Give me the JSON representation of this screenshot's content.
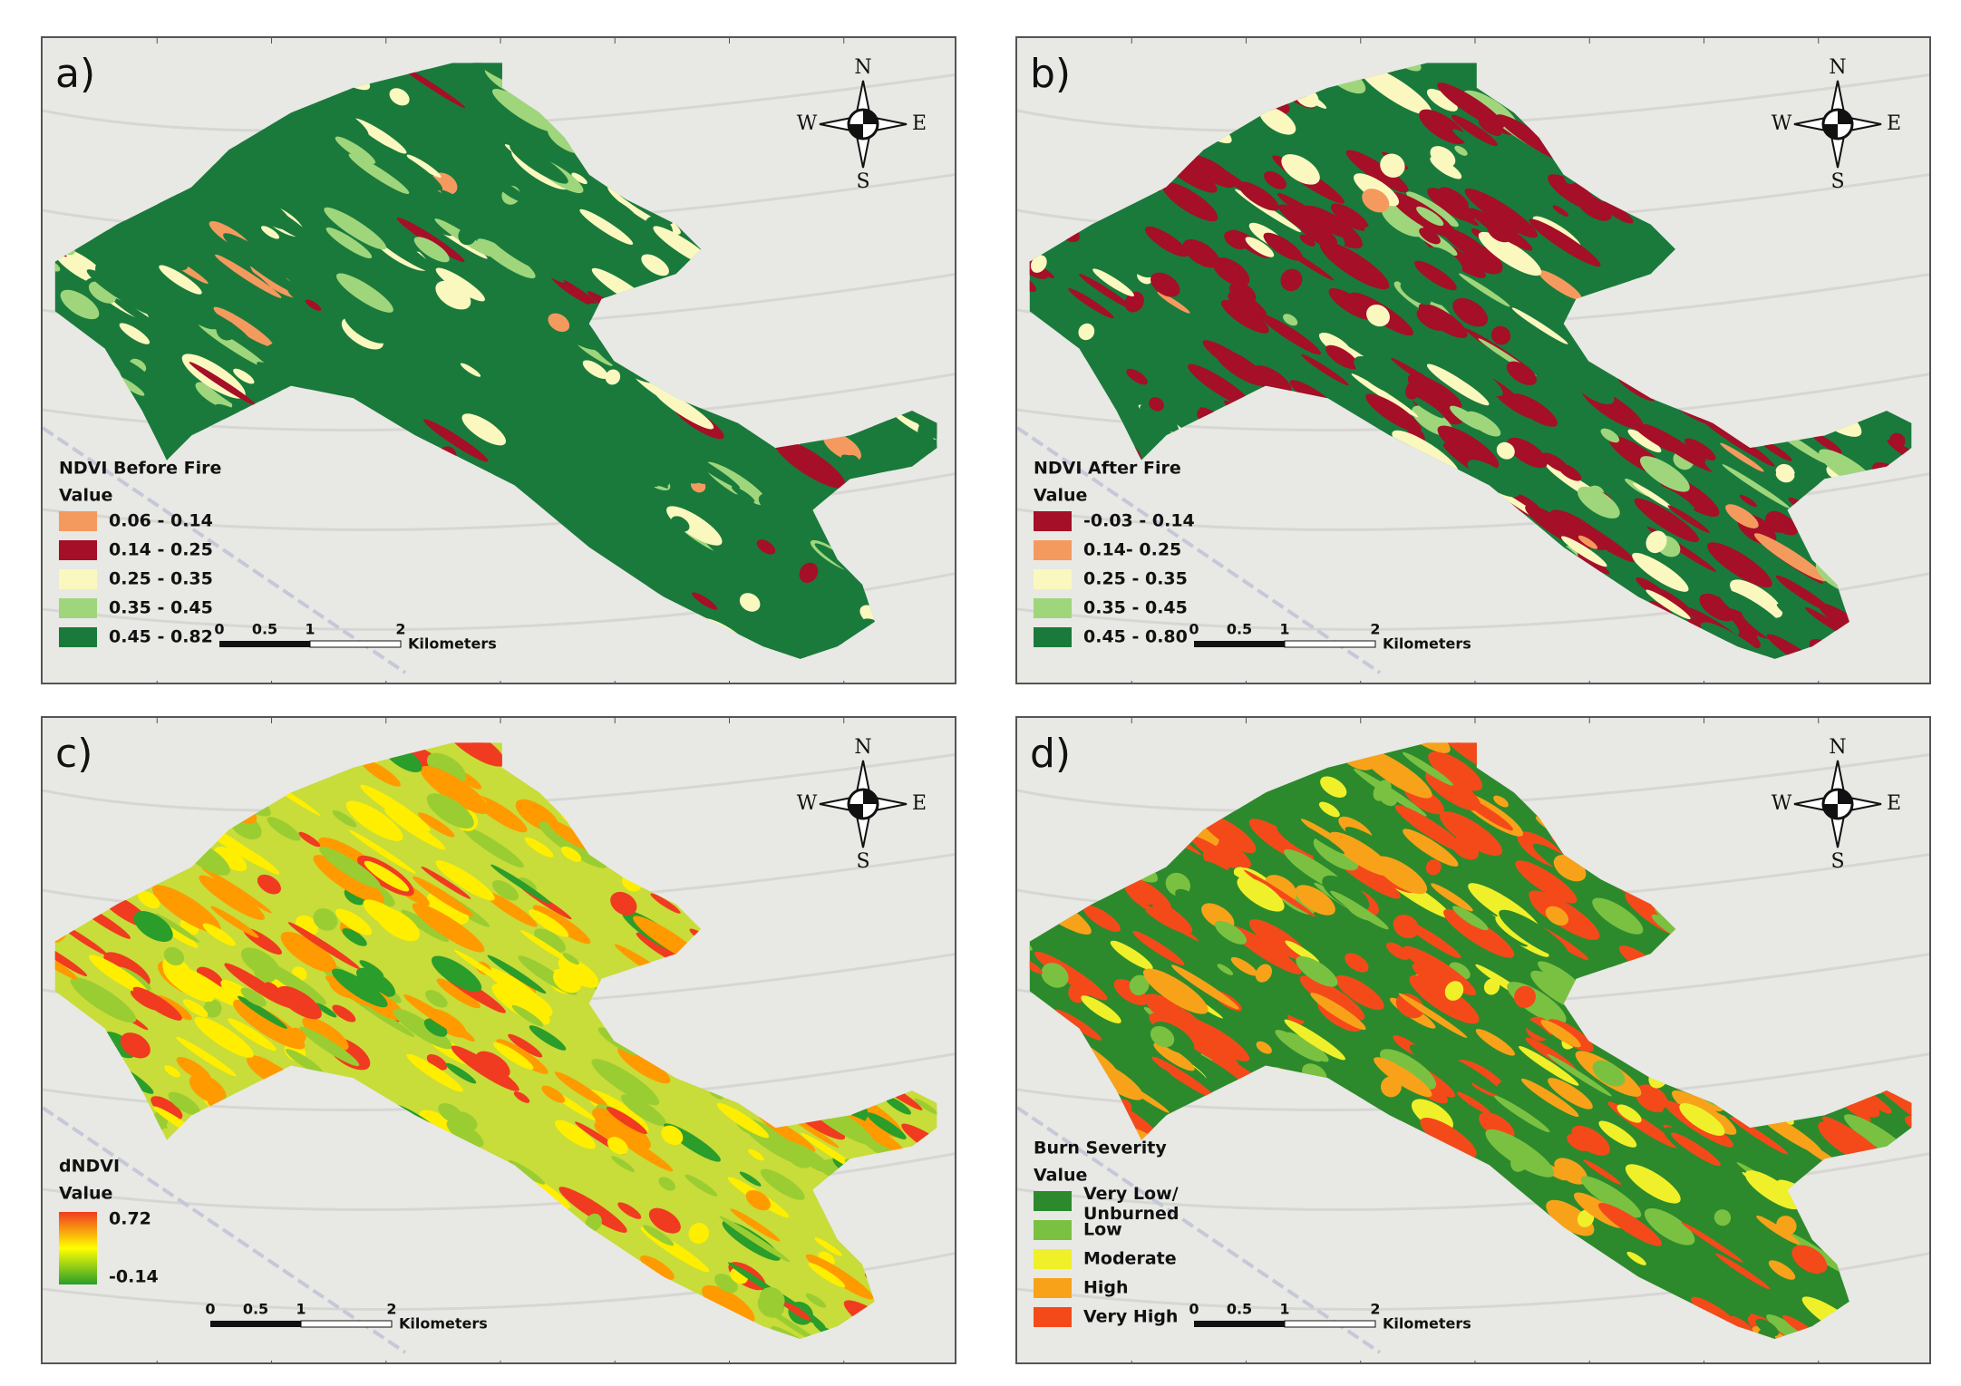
{
  "panels": [
    {
      "label": "a)",
      "legend": {
        "title": "NDVI Before Fire",
        "subtitle": "Value",
        "items": [
          {
            "label": "0.06 - 0.14",
            "color": "#f59a5e"
          },
          {
            "label": "0.14 - 0.25",
            "color": "#a50f28"
          },
          {
            "label": "0.25 - 0.35",
            "color": "#fbf8bf"
          },
          {
            "label": "0.35 - 0.45",
            "color": "#9fd67c"
          },
          {
            "label": "0.45 - 0.82",
            "color": "#1a7a3c"
          }
        ]
      }
    },
    {
      "label": "b)",
      "legend": {
        "title": "NDVI After Fire",
        "subtitle": "Value",
        "items": [
          {
            "label": "-0.03 - 0.14",
            "color": "#a50f28"
          },
          {
            "label": "0.14- 0.25",
            "color": "#f59a5e"
          },
          {
            "label": "0.25 - 0.35",
            "color": "#fbf8bf"
          },
          {
            "label": "0.35 - 0.45",
            "color": "#9fd67c"
          },
          {
            "label": "0.45 - 0.80",
            "color": "#1a7a3c"
          }
        ]
      }
    },
    {
      "label": "c)",
      "legend": {
        "title": "dNDVI",
        "subtitle": "Value",
        "gradient": true,
        "items": [
          {
            "label": "0.72",
            "color": "#f03b20"
          },
          {
            "label": "-0.14",
            "color": "#2a9d2a"
          }
        ]
      }
    },
    {
      "label": "d)",
      "legend": {
        "title": "Burn Severity",
        "subtitle": "Value",
        "items": [
          {
            "label": "Very Low/ Unburned",
            "color": "#2c8a2c"
          },
          {
            "label": "Low",
            "color": "#7ac142"
          },
          {
            "label": "Moderate",
            "color": "#f0f02a"
          },
          {
            "label": "High",
            "color": "#f8a21a"
          },
          {
            "label": "Very High",
            "color": "#f44a1a"
          }
        ]
      }
    }
  ],
  "compass": {
    "n": "N",
    "s": "S",
    "e": "E",
    "w": "W"
  },
  "scale_bar": {
    "ticks": [
      "0",
      "0.5",
      "1",
      "2"
    ],
    "unit": "Kilometers"
  }
}
